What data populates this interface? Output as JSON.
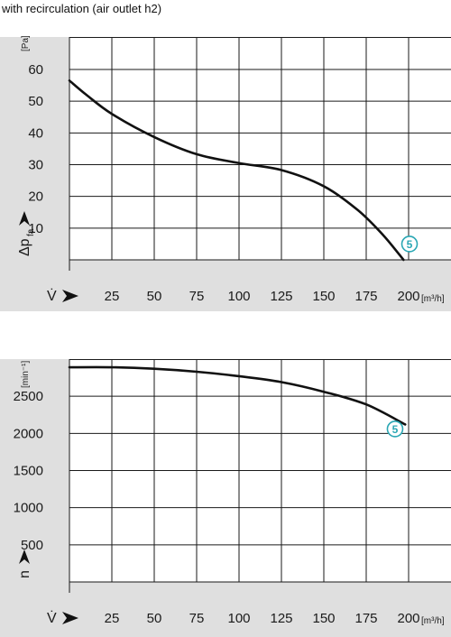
{
  "heading": "with recirculation (air outlet h2)",
  "colors": {
    "band": "#dfdfdf",
    "grid": "#1a1a1a",
    "curve": "#111111",
    "marker": "#2aa7b4"
  },
  "chart_data": [
    {
      "type": "line",
      "x_symbol": "V̇",
      "x_unit": "[m³/h]",
      "xlim": [
        0,
        200
      ],
      "x_ticks": [
        25,
        50,
        75,
        100,
        125,
        150,
        175,
        200
      ],
      "y_symbol": "Δp",
      "y_symbol_sub": "fa",
      "y_unit": "[Pa]",
      "ylim": [
        0,
        60
      ],
      "y_ticks": [
        10,
        20,
        30,
        40,
        50,
        60
      ],
      "grid": true,
      "series": [
        {
          "x": [
            0,
            10,
            25,
            50,
            75,
            100,
            125,
            150,
            170,
            185,
            197
          ],
          "y": [
            56.5,
            52,
            46,
            38.7,
            33.3,
            30.5,
            28.3,
            23.2,
            15.7,
            7.8,
            0
          ]
        }
      ],
      "marker": {
        "label": "5",
        "x": 200,
        "y": 5
      }
    },
    {
      "type": "line",
      "x_symbol": "V̇",
      "x_unit": "[m³/h]",
      "xlim": [
        0,
        200
      ],
      "x_ticks": [
        25,
        50,
        75,
        100,
        125,
        150,
        175,
        200
      ],
      "y_symbol": "n",
      "y_unit": "[min⁻¹]",
      "ylim": [
        0,
        3000
      ],
      "y_ticks": [
        500,
        1000,
        1500,
        2000,
        2500
      ],
      "grid": true,
      "series": [
        {
          "x": [
            0,
            25,
            50,
            75,
            100,
            125,
            150,
            175,
            198
          ],
          "y": [
            2890,
            2890,
            2870,
            2830,
            2770,
            2690,
            2560,
            2390,
            2120
          ]
        }
      ],
      "marker": {
        "label": "5",
        "x": 192,
        "y": 2060
      }
    }
  ]
}
